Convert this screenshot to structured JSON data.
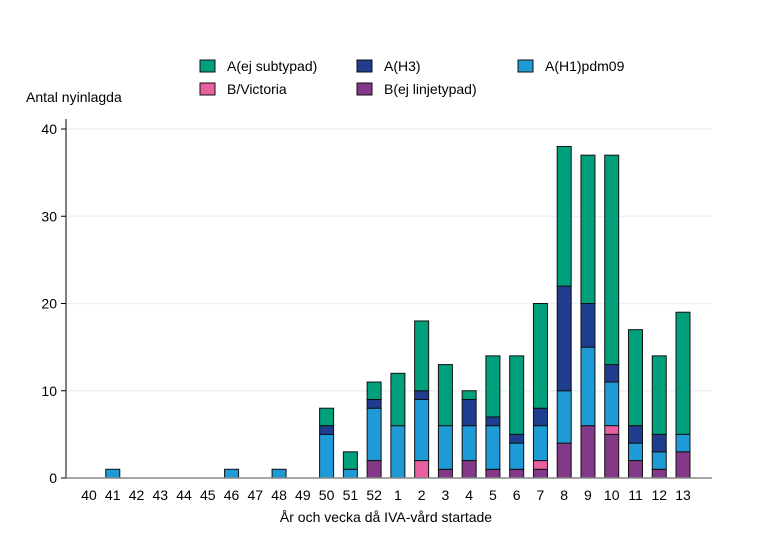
{
  "chart_data": {
    "type": "bar",
    "stacked": true,
    "title": "",
    "xlabel": "År och vecka då IVA-vård startade",
    "ylabel": "Antal nyinlagda",
    "ylim": [
      0,
      40
    ],
    "yticks": [
      0,
      10,
      20,
      30,
      40
    ],
    "grid": "horizontal",
    "legend_position": "top",
    "categories": [
      "40",
      "41",
      "42",
      "43",
      "44",
      "45",
      "46",
      "47",
      "48",
      "49",
      "50",
      "51",
      "52",
      "1",
      "2",
      "3",
      "4",
      "5",
      "6",
      "7",
      "8",
      "9",
      "10",
      "11",
      "12",
      "13"
    ],
    "series": [
      {
        "name": "B(ej linjetypad)",
        "color": "#833888",
        "values": [
          0,
          0,
          0,
          0,
          0,
          0,
          0,
          0,
          0,
          0,
          0,
          0,
          2,
          0,
          0,
          1,
          2,
          1,
          1,
          1,
          4,
          6,
          5,
          2,
          1,
          3
        ]
      },
      {
        "name": "B/Victoria",
        "color": "#e8609d",
        "values": [
          0,
          0,
          0,
          0,
          0,
          0,
          0,
          0,
          0,
          0,
          0,
          0,
          0,
          0,
          2,
          0,
          0,
          0,
          0,
          1,
          0,
          0,
          1,
          0,
          0,
          0
        ]
      },
      {
        "name": "A(H1)pdm09",
        "color": "#1e9ad6",
        "values": [
          0,
          1,
          0,
          0,
          0,
          0,
          1,
          0,
          1,
          0,
          5,
          1,
          6,
          6,
          7,
          5,
          4,
          5,
          3,
          4,
          6,
          9,
          5,
          2,
          2,
          2
        ]
      },
      {
        "name": "A(H3)",
        "color": "#1f3c8f",
        "values": [
          0,
          0,
          0,
          0,
          0,
          0,
          0,
          0,
          0,
          0,
          1,
          0,
          1,
          0,
          1,
          0,
          3,
          1,
          1,
          2,
          12,
          5,
          2,
          2,
          2,
          0
        ]
      },
      {
        "name": "A(ej subtypad)",
        "color": "#00a07c",
        "values": [
          0,
          0,
          0,
          0,
          0,
          0,
          0,
          0,
          0,
          0,
          2,
          2,
          2,
          6,
          8,
          7,
          1,
          7,
          9,
          12,
          16,
          17,
          24,
          11,
          9,
          14
        ]
      }
    ],
    "legend_order": [
      "A(ej subtypad)",
      "A(H3)",
      "A(H1)pdm09",
      "B/Victoria",
      "B(ej linjetypad)"
    ]
  }
}
